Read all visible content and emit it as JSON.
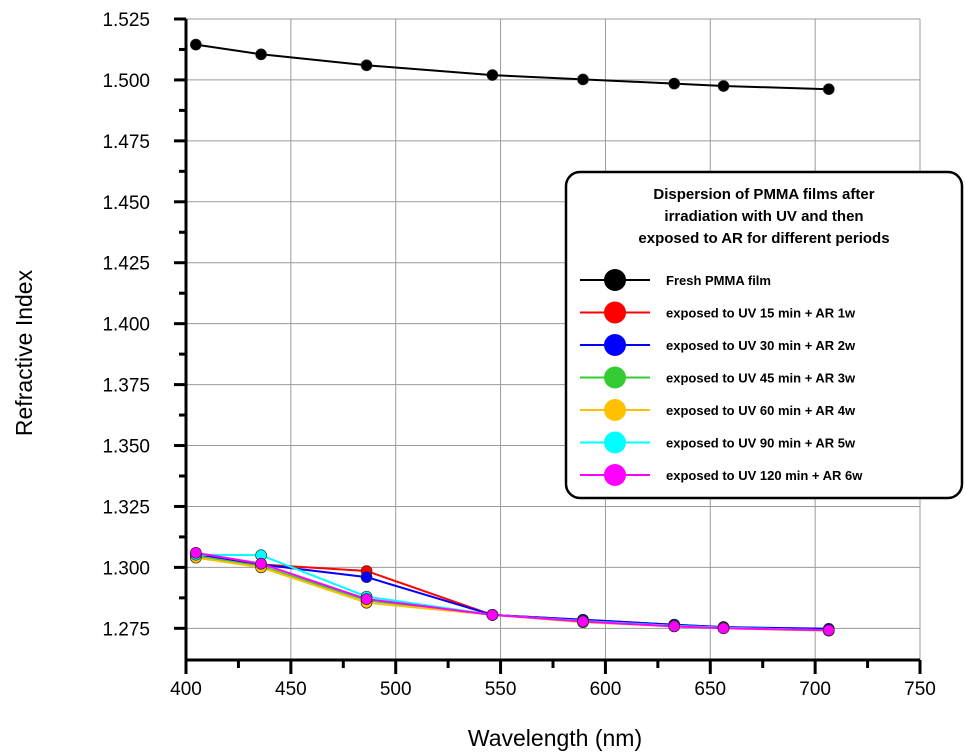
{
  "chart_data": {
    "type": "line",
    "xlabel": "Wavelength  (nm)",
    "ylabel": "Refractive Index",
    "xlim": [
      400,
      750
    ],
    "ylim": [
      1.262,
      1.525
    ],
    "xticks": [
      400,
      450,
      500,
      550,
      600,
      650,
      700,
      750
    ],
    "xtick_labels": [
      "400",
      "450",
      "500",
      "550",
      "600",
      "650",
      "700",
      "750"
    ],
    "yticks": [
      1.275,
      1.3,
      1.325,
      1.35,
      1.375,
      1.4,
      1.425,
      1.45,
      1.475,
      1.5,
      1.525
    ],
    "ytick_labels": [
      "1.275",
      "1.300",
      "1.325",
      "1.350",
      "1.375",
      "1.400",
      "1.425",
      "1.450",
      "1.475",
      "1.500",
      "1.525"
    ],
    "grid": true,
    "legend": {
      "position": "right-middle",
      "title_lines": [
        "Dispersion of PMMA films after",
        "irradiation with UV and then",
        "exposed to AR for different periods"
      ]
    },
    "x": [
      404.7,
      435.8,
      486.1,
      546.1,
      589.3,
      632.8,
      656.3,
      706.5
    ],
    "series": [
      {
        "name": "Fresh PMMA film",
        "color": "#000000",
        "values": [
          1.5145,
          1.5105,
          1.506,
          1.502,
          1.5002,
          1.4985,
          1.4975,
          1.4962
        ]
      },
      {
        "name": "exposed to UV 15 min + AR 1w",
        "color": "#ff0000",
        "values": [
          1.3055,
          1.3012,
          1.2985,
          1.2805,
          1.2785,
          1.2765,
          1.2755,
          1.2745
        ]
      },
      {
        "name": "exposed to UV 30 min + AR 2w",
        "color": "#0000ff",
        "values": [
          1.3055,
          1.3012,
          1.296,
          1.2805,
          1.2785,
          1.2765,
          1.2755,
          1.2748
        ]
      },
      {
        "name": "exposed to UV 45 min + AR 3w",
        "color": "#33cc33",
        "values": [
          1.3045,
          1.3005,
          1.2865,
          1.2805,
          1.2778,
          1.276,
          1.2752,
          1.2742
        ]
      },
      {
        "name": "exposed to UV 60 min + AR 4w",
        "color": "#ffc000",
        "values": [
          1.304,
          1.3,
          1.2855,
          1.2805,
          1.2775,
          1.2758,
          1.275,
          1.274
        ]
      },
      {
        "name": "exposed to UV 90 min + AR 5w",
        "color": "#00ffff",
        "values": [
          1.3052,
          1.305,
          1.288,
          1.2805,
          1.278,
          1.276,
          1.2752,
          1.2742
        ]
      },
      {
        "name": "exposed to UV 120 min + AR 6w",
        "color": "#ff00ff",
        "values": [
          1.306,
          1.3015,
          1.287,
          1.2805,
          1.2778,
          1.2758,
          1.275,
          1.2742
        ]
      }
    ]
  }
}
